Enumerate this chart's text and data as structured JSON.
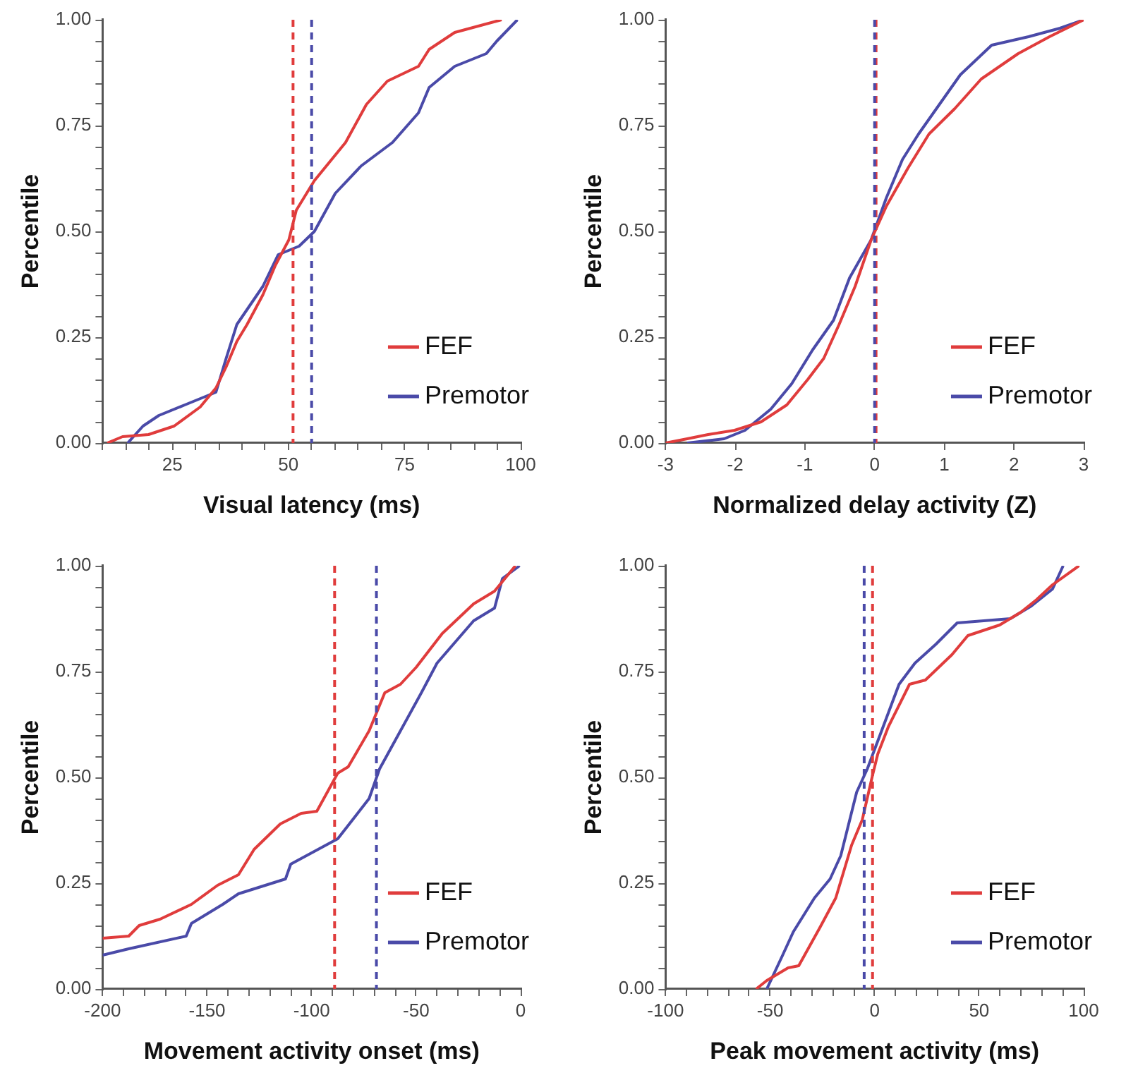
{
  "chart_data": [
    {
      "type": "line",
      "xlabel": "Visual latency (ms)",
      "ylabel": "Percentile",
      "legend": "bottom right",
      "xlim": [
        10,
        100
      ],
      "xticks": [
        {
          "value": 10,
          "label": null
        },
        {
          "value": 15,
          "label": null
        },
        {
          "value": 20,
          "label": null
        },
        25,
        {
          "value": 30,
          "label": null
        },
        {
          "value": 35,
          "label": null
        },
        {
          "value": 40,
          "label": null
        },
        {
          "value": 45,
          "label": null
        },
        50,
        {
          "value": 55,
          "label": null
        },
        {
          "value": 60,
          "label": null
        },
        {
          "value": 65,
          "label": null
        },
        {
          "value": 70,
          "label": null
        },
        75,
        {
          "value": 80,
          "label": null
        },
        {
          "value": 85,
          "label": null
        },
        {
          "value": 90,
          "label": null
        },
        {
          "value": 95,
          "label": null
        },
        100
      ],
      "ylim": [
        0,
        1
      ],
      "yticks": [
        {
          "value": 0,
          "label": "0.00"
        },
        {
          "value": 0.05,
          "label": null
        },
        {
          "value": 0.1,
          "label": null
        },
        {
          "value": 0.15,
          "label": null
        },
        {
          "value": 0.2,
          "label": null
        },
        {
          "value": 0.25,
          "label": "0.25"
        },
        {
          "value": 0.3,
          "label": null
        },
        {
          "value": 0.35,
          "label": null
        },
        {
          "value": 0.4,
          "label": null
        },
        {
          "value": 0.45,
          "label": null
        },
        {
          "value": 0.5,
          "label": "0.50"
        },
        {
          "value": 0.55,
          "label": null
        },
        {
          "value": 0.6,
          "label": null
        },
        {
          "value": 0.65,
          "label": null
        },
        {
          "value": 0.7,
          "label": null
        },
        {
          "value": 0.75,
          "label": "0.75"
        },
        {
          "value": 0.8,
          "label": null
        },
        {
          "value": 0.85,
          "label": null
        },
        {
          "value": 0.9,
          "label": null
        },
        {
          "value": 0.95,
          "label": null
        },
        {
          "value": 1,
          "label": "1.00"
        }
      ],
      "series": [
        {
          "name": "FEF",
          "color": "#e03c3c",
          "x": [
            11,
            14.3,
            19.9,
            25.4,
            31,
            34.4,
            36.6,
            38.9,
            41.1,
            44.5,
            47.2,
            50.1,
            51.7,
            55.6,
            62.3,
            66.8,
            71.3,
            78,
            80.3,
            85.8,
            95.9
          ],
          "values": [
            0,
            0.015,
            0.02,
            0.04,
            0.085,
            0.13,
            0.18,
            0.24,
            0.28,
            0.35,
            0.42,
            0.48,
            0.55,
            0.62,
            0.71,
            0.8,
            0.855,
            0.89,
            0.93,
            0.97,
            1
          ]
        },
        {
          "name": "Premotor",
          "color": "#4a4aa8",
          "x": [
            15.4,
            18.7,
            22.1,
            27.7,
            34.4,
            36.6,
            38.9,
            44.5,
            47.8,
            52.3,
            55.6,
            60.1,
            65.7,
            72.4,
            78,
            80.3,
            85.8,
            92.6,
            94.9,
            99.3
          ],
          "values": [
            0,
            0.04,
            0.065,
            0.09,
            0.12,
            0.2,
            0.28,
            0.37,
            0.445,
            0.465,
            0.5,
            0.59,
            0.655,
            0.71,
            0.78,
            0.84,
            0.89,
            0.92,
            0.95,
            1
          ]
        }
      ],
      "ref_lines": [
        {
          "axis": "x",
          "value": 51,
          "color": "#e03c3c",
          "line_style": "dashed"
        },
        {
          "axis": "x",
          "value": 55,
          "color": "#4a4aa8",
          "line_style": "dashed"
        }
      ]
    },
    {
      "type": "line",
      "xlabel": "Normalized delay activity (Z)",
      "ylabel": "Percentile",
      "legend": "bottom right",
      "xlim": [
        -3,
        3
      ],
      "xticks": [
        -3,
        -2,
        -1,
        0,
        1,
        2,
        3
      ],
      "ylim": [
        0,
        1
      ],
      "yticks": [
        {
          "value": 0,
          "label": "0.00"
        },
        {
          "value": 0.05,
          "label": null
        },
        {
          "value": 0.1,
          "label": null
        },
        {
          "value": 0.15,
          "label": null
        },
        {
          "value": 0.2,
          "label": null
        },
        {
          "value": 0.25,
          "label": "0.25"
        },
        {
          "value": 0.3,
          "label": null
        },
        {
          "value": 0.35,
          "label": null
        },
        {
          "value": 0.4,
          "label": null
        },
        {
          "value": 0.45,
          "label": null
        },
        {
          "value": 0.5,
          "label": "0.50"
        },
        {
          "value": 0.55,
          "label": null
        },
        {
          "value": 0.6,
          "label": null
        },
        {
          "value": 0.65,
          "label": null
        },
        {
          "value": 0.7,
          "label": null
        },
        {
          "value": 0.75,
          "label": "0.75"
        },
        {
          "value": 0.8,
          "label": null
        },
        {
          "value": 0.85,
          "label": null
        },
        {
          "value": 0.9,
          "label": null
        },
        {
          "value": 0.95,
          "label": null
        },
        {
          "value": 1,
          "label": "1.00"
        }
      ],
      "series": [
        {
          "name": "FEF",
          "color": "#e03c3c",
          "x": [
            -3,
            -2.69,
            -2.39,
            -2.01,
            -1.63,
            -1.26,
            -0.96,
            -0.73,
            -0.51,
            -0.28,
            -0.05,
            0.17,
            0.48,
            0.78,
            1.15,
            1.53,
            2.06,
            2.51,
            3
          ],
          "values": [
            0,
            0.01,
            0.02,
            0.03,
            0.05,
            0.09,
            0.15,
            0.2,
            0.28,
            0.37,
            0.48,
            0.56,
            0.65,
            0.73,
            0.79,
            0.86,
            0.92,
            0.96,
            1
          ]
        },
        {
          "name": "Premotor",
          "color": "#4a4aa8",
          "x": [
            -2.69,
            -2.16,
            -1.86,
            -1.49,
            -1.19,
            -0.89,
            -0.59,
            -0.36,
            -0.05,
            0.17,
            0.4,
            0.63,
            0.93,
            1.23,
            1.68,
            2.21,
            2.66,
            3
          ],
          "values": [
            0,
            0.01,
            0.03,
            0.08,
            0.14,
            0.22,
            0.29,
            0.39,
            0.48,
            0.58,
            0.67,
            0.73,
            0.8,
            0.87,
            0.94,
            0.96,
            0.98,
            1
          ]
        }
      ],
      "ref_lines": [
        {
          "axis": "x",
          "value": 0.02,
          "color": "#e03c3c",
          "line_style": "dashed"
        },
        {
          "axis": "x",
          "value": 0,
          "color": "#4a4aa8",
          "line_style": "dashed"
        }
      ]
    },
    {
      "type": "line",
      "xlabel": "Movement activity onset (ms)",
      "ylabel": "Percentile",
      "legend": "bottom right",
      "xlim": [
        -200,
        0
      ],
      "xticks": [
        -200,
        {
          "value": -190,
          "label": null
        },
        {
          "value": -180,
          "label": null
        },
        {
          "value": -170,
          "label": null
        },
        {
          "value": -160,
          "label": null
        },
        -150,
        {
          "value": -140,
          "label": null
        },
        {
          "value": -130,
          "label": null
        },
        {
          "value": -120,
          "label": null
        },
        {
          "value": -110,
          "label": null
        },
        -100,
        {
          "value": -90,
          "label": null
        },
        {
          "value": -80,
          "label": null
        },
        {
          "value": -70,
          "label": null
        },
        {
          "value": -60,
          "label": null
        },
        -50,
        {
          "value": -40,
          "label": null
        },
        {
          "value": -30,
          "label": null
        },
        {
          "value": -20,
          "label": null
        },
        {
          "value": -10,
          "label": null
        },
        0
      ],
      "ylim": [
        0,
        1
      ],
      "yticks": [
        {
          "value": 0,
          "label": "0.00"
        },
        {
          "value": 0.05,
          "label": null
        },
        {
          "value": 0.1,
          "label": null
        },
        {
          "value": 0.15,
          "label": null
        },
        {
          "value": 0.2,
          "label": null
        },
        {
          "value": 0.25,
          "label": "0.25"
        },
        {
          "value": 0.3,
          "label": null
        },
        {
          "value": 0.35,
          "label": null
        },
        {
          "value": 0.4,
          "label": null
        },
        {
          "value": 0.45,
          "label": null
        },
        {
          "value": 0.5,
          "label": "0.50"
        },
        {
          "value": 0.55,
          "label": null
        },
        {
          "value": 0.6,
          "label": null
        },
        {
          "value": 0.65,
          "label": null
        },
        {
          "value": 0.7,
          "label": null
        },
        {
          "value": 0.75,
          "label": "0.75"
        },
        {
          "value": 0.8,
          "label": null
        },
        {
          "value": 0.85,
          "label": null
        },
        {
          "value": 0.9,
          "label": null
        },
        {
          "value": 0.95,
          "label": null
        },
        {
          "value": 1,
          "label": "1.00"
        }
      ],
      "series": [
        {
          "name": "FEF",
          "color": "#e03c3c",
          "x": [
            -200,
            -187.5,
            -182.5,
            -172.5,
            -157.5,
            -145,
            -135,
            -127.5,
            -115,
            -105,
            -97.5,
            -87.5,
            -82.5,
            -72.5,
            -65,
            -57.5,
            -50,
            -37.5,
            -22.5,
            -12.5,
            -2.5
          ],
          "values": [
            0.12,
            0.125,
            0.15,
            0.165,
            0.2,
            0.245,
            0.27,
            0.33,
            0.39,
            0.415,
            0.42,
            0.51,
            0.525,
            0.61,
            0.7,
            0.72,
            0.76,
            0.84,
            0.91,
            0.94,
            1
          ]
        },
        {
          "name": "Premotor",
          "color": "#4a4aa8",
          "x": [
            -200,
            -187.5,
            -160,
            -157.5,
            -142.5,
            -135,
            -112.5,
            -110,
            -95,
            -87.5,
            -72.5,
            -67.5,
            -57.5,
            -47.5,
            -40,
            -22.5,
            -12.5,
            -8.7,
            -0.5
          ],
          "values": [
            0.08,
            0.095,
            0.125,
            0.155,
            0.2,
            0.225,
            0.26,
            0.295,
            0.335,
            0.355,
            0.45,
            0.52,
            0.61,
            0.7,
            0.77,
            0.87,
            0.9,
            0.97,
            1
          ]
        }
      ],
      "ref_lines": [
        {
          "axis": "x",
          "value": -89,
          "color": "#e03c3c",
          "line_style": "dashed"
        },
        {
          "axis": "x",
          "value": -69,
          "color": "#4a4aa8",
          "line_style": "dashed"
        }
      ]
    },
    {
      "type": "line",
      "xlabel": "Peak movement activity (ms)",
      "ylabel": "Percentile",
      "legend": "bottom right",
      "xlim": [
        -100,
        100
      ],
      "xticks": [
        -100,
        {
          "value": -90,
          "label": null
        },
        {
          "value": -80,
          "label": null
        },
        {
          "value": -70,
          "label": null
        },
        {
          "value": -60,
          "label": null
        },
        -50,
        {
          "value": -40,
          "label": null
        },
        {
          "value": -30,
          "label": null
        },
        {
          "value": -20,
          "label": null
        },
        {
          "value": -10,
          "label": null
        },
        0,
        {
          "value": 10,
          "label": null
        },
        {
          "value": 20,
          "label": null
        },
        {
          "value": 30,
          "label": null
        },
        {
          "value": 40,
          "label": null
        },
        50,
        {
          "value": 60,
          "label": null
        },
        {
          "value": 70,
          "label": null
        },
        {
          "value": 80,
          "label": null
        },
        {
          "value": 90,
          "label": null
        },
        100
      ],
      "ylim": [
        0,
        1
      ],
      "yticks": [
        {
          "value": 0,
          "label": "0.00"
        },
        {
          "value": 0.05,
          "label": null
        },
        {
          "value": 0.1,
          "label": null
        },
        {
          "value": 0.15,
          "label": null
        },
        {
          "value": 0.2,
          "label": null
        },
        {
          "value": 0.25,
          "label": "0.25"
        },
        {
          "value": 0.3,
          "label": null
        },
        {
          "value": 0.35,
          "label": null
        },
        {
          "value": 0.4,
          "label": null
        },
        {
          "value": 0.45,
          "label": null
        },
        {
          "value": 0.5,
          "label": "0.50"
        },
        {
          "value": 0.55,
          "label": null
        },
        {
          "value": 0.6,
          "label": null
        },
        {
          "value": 0.65,
          "label": null
        },
        {
          "value": 0.7,
          "label": null
        },
        {
          "value": 0.75,
          "label": "0.75"
        },
        {
          "value": 0.8,
          "label": null
        },
        {
          "value": 0.85,
          "label": null
        },
        {
          "value": 0.9,
          "label": null
        },
        {
          "value": 0.95,
          "label": null
        },
        {
          "value": 1,
          "label": "1.00"
        }
      ],
      "series": [
        {
          "name": "FEF",
          "color": "#e03c3c",
          "x": [
            -56.7,
            -51.6,
            -41.4,
            -36.3,
            -26.2,
            -18.6,
            -11,
            -5.9,
            -1,
            1.5,
            6.6,
            16.7,
            24.3,
            37,
            44.6,
            59.8,
            69.9,
            77.5,
            85.1,
            97.8
          ],
          "values": [
            0,
            0.02,
            0.05,
            0.055,
            0.145,
            0.215,
            0.34,
            0.4,
            0.505,
            0.555,
            0.62,
            0.72,
            0.73,
            0.79,
            0.835,
            0.86,
            0.89,
            0.92,
            0.955,
            1
          ]
        },
        {
          "name": "Premotor",
          "color": "#4a4aa8",
          "x": [
            -51.6,
            -44,
            -38.9,
            -28.8,
            -21.3,
            -16.2,
            -8.6,
            -3.5,
            4.1,
            11.7,
            19.3,
            29.4,
            39.5,
            64.9,
            75,
            85.1,
            90.2
          ],
          "values": [
            0,
            0.08,
            0.135,
            0.215,
            0.26,
            0.315,
            0.465,
            0.52,
            0.62,
            0.72,
            0.77,
            0.815,
            0.865,
            0.875,
            0.905,
            0.945,
            1
          ]
        }
      ],
      "ref_lines": [
        {
          "axis": "x",
          "value": -1,
          "color": "#e03c3c",
          "line_style": "dashed"
        },
        {
          "axis": "x",
          "value": -5,
          "color": "#4a4aa8",
          "line_style": "dashed"
        }
      ]
    }
  ]
}
